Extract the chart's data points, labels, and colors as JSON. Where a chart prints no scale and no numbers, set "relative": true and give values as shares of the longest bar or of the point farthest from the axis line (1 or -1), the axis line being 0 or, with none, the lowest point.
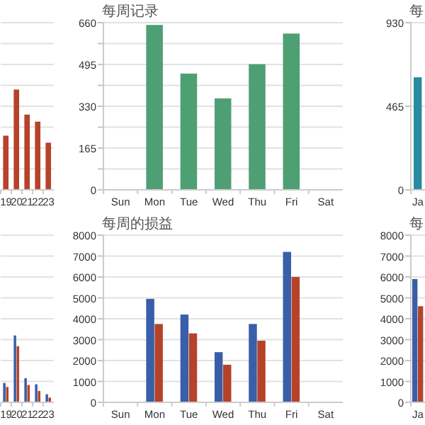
{
  "chart_data": [
    {
      "type": "bar",
      "relative": true,
      "categories": [
        "19",
        "20",
        "21",
        "22",
        "23"
      ],
      "values": [
        0.54,
        1,
        0.75,
        0.68,
        0.47
      ],
      "color": "#b5432a",
      "grid": true
    },
    {
      "type": "bar",
      "title": "每周记录",
      "categories": [
        "Sun",
        "Mon",
        "Tue",
        "Wed",
        "Thu",
        "Fri",
        "Sat"
      ],
      "values": [
        null,
        651,
        459,
        361,
        496,
        617,
        null
      ],
      "color": "#4f9f74",
      "ylim": [
        0,
        660
      ],
      "yticks": [
        0,
        {
          "value": 82.5,
          "label": null
        },
        165,
        {
          "value": 247.5,
          "label": null
        },
        330,
        {
          "value": 412.5,
          "label": null
        },
        495,
        {
          "value": 577.5,
          "label": null
        },
        660
      ],
      "grid": true
    },
    {
      "type": "bar",
      "title": "每",
      "categories": [
        "Ja"
      ],
      "values": [
        626
      ],
      "color": "#2a8aa0",
      "ylim": [
        0,
        930
      ],
      "yticks": [
        0,
        465,
        930
      ],
      "grid": true
    },
    {
      "type": "bar",
      "relative": true,
      "categories": [
        "19",
        "20",
        "21",
        "22",
        "23"
      ],
      "series": [
        {
          "color": "#3a5ea8",
          "values": [
            0.29,
            1,
            0.36,
            0.27,
            0.12
          ]
        },
        {
          "color": "#b5432a",
          "values": [
            0.23,
            0.84,
            0.26,
            0.17,
            0.07
          ]
        }
      ],
      "grid": true
    },
    {
      "type": "bar",
      "title": "每周的损益",
      "categories": [
        "Sun",
        "Mon",
        "Tue",
        "Wed",
        "Thu",
        "Fri",
        "Sat"
      ],
      "series": [
        {
          "color": "#3a5ea8",
          "values": [
            null,
            4950,
            4200,
            2400,
            3750,
            7200,
            null
          ]
        },
        {
          "color": "#b5432a",
          "values": [
            null,
            3750,
            3300,
            1800,
            2950,
            6000,
            null
          ]
        }
      ],
      "ylim": [
        0,
        8000
      ],
      "yticks": [
        0,
        1000,
        2000,
        3000,
        4000,
        5000,
        6000,
        7000,
        8000
      ],
      "grid": true
    },
    {
      "type": "bar",
      "title": "每",
      "categories": [
        "Ja"
      ],
      "series": [
        {
          "color": "#3a5ea8",
          "values": [
            5900
          ]
        },
        {
          "color": "#b5432a",
          "values": [
            4600
          ]
        }
      ],
      "ylim": [
        0,
        8000
      ],
      "yticks": [
        0,
        1000,
        2000,
        3000,
        4000,
        5000,
        6000,
        7000,
        8000
      ],
      "grid": true
    }
  ]
}
